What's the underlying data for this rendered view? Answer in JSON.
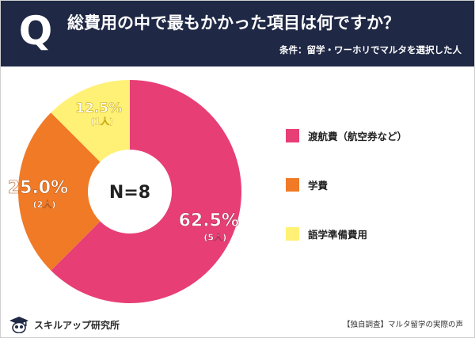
{
  "header": {
    "q_letter": "Q",
    "question": "総費用の中で最もかかった項目は何ですか？",
    "condition": "条件：留学・ワーホリでマルタを選択した人"
  },
  "colors": {
    "header_bg": "#1f2845",
    "pink": "#e83e76",
    "orange": "#f07a26",
    "yellow": "#fff176"
  },
  "chart_data": {
    "type": "pie",
    "variant": "donut",
    "center_label": "N=8",
    "series": [
      {
        "name": "渡航費（航空券など）",
        "value": 62.5,
        "count": 5,
        "percent_label": "62.5%",
        "count_label": "(5人)",
        "color": "#e83e76"
      },
      {
        "name": "学費",
        "value": 25.0,
        "count": 2,
        "percent_label": "25.0%",
        "count_label": "(2人)",
        "color": "#f07a26"
      },
      {
        "name": "語学準備費用",
        "value": 12.5,
        "count": 1,
        "percent_label": "12.5%",
        "count_label": "(1人)",
        "color": "#fff176"
      }
    ],
    "legend_placement": "right"
  },
  "footer": {
    "logo_icon": "graduation-owl-icon",
    "logo_text": "スキルアップ研究所",
    "note": "【独自調査】マルタ留学の実際の声"
  }
}
